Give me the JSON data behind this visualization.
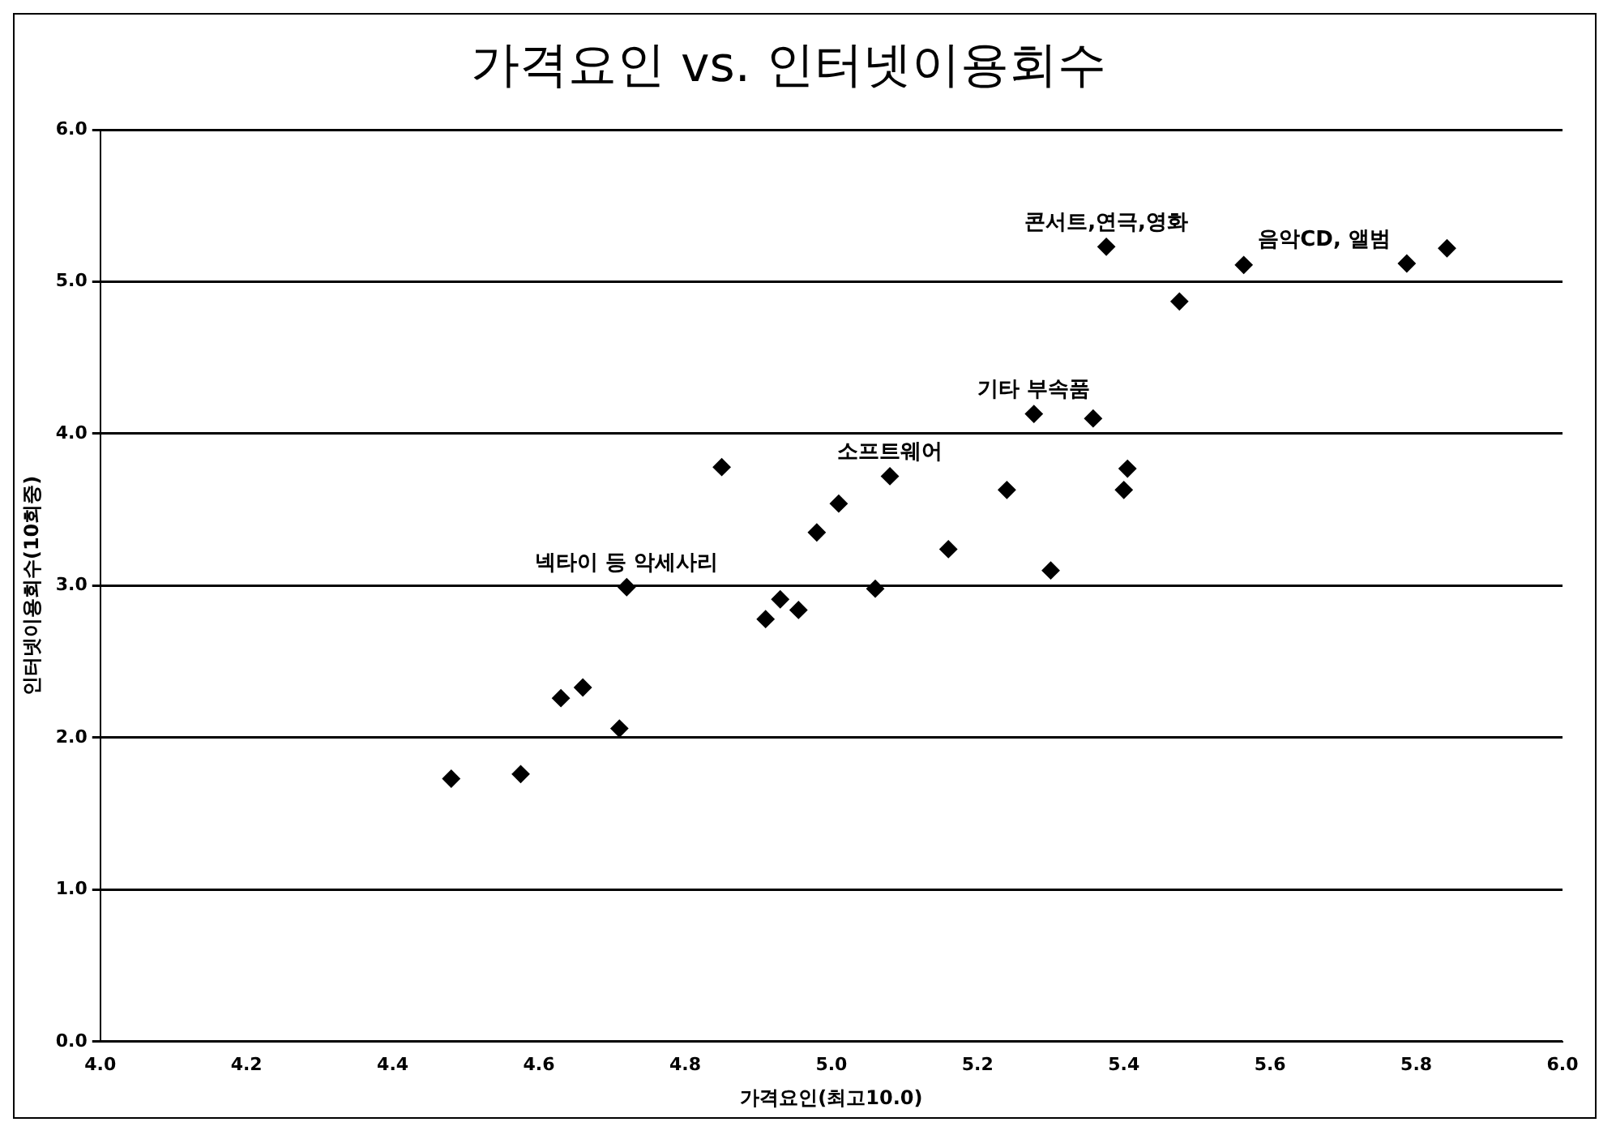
{
  "chart_data": {
    "type": "scatter",
    "title": "가격요인 vs. 인터넷이용회수",
    "xlabel": "가격요인(최고10.0)",
    "ylabel": "인터넷이용회수(10회중)",
    "x": [
      4.48,
      4.575,
      4.71,
      4.63,
      4.66,
      4.72,
      4.85,
      5.01,
      4.93,
      4.91,
      4.955,
      5.06,
      4.98,
      5.08,
      5.16,
      5.24,
      5.3,
      5.4,
      5.405,
      5.277,
      5.358,
      5.376,
      5.564,
      5.787,
      5.842,
      5.476
    ],
    "values": [
      1.73,
      1.76,
      2.06,
      2.26,
      2.33,
      2.99,
      3.78,
      3.54,
      2.91,
      2.78,
      2.84,
      2.98,
      3.35,
      3.72,
      3.24,
      3.63,
      3.1,
      3.63,
      3.77,
      4.13,
      4.1,
      5.23,
      5.11,
      5.12,
      5.22,
      4.87
    ],
    "color": "#000000",
    "marker": "diamond",
    "xlim": [
      4.0,
      6.0
    ],
    "xticks": [
      {
        "value": 4.0,
        "label": "4.0"
      },
      4.2,
      4.4,
      4.6,
      4.8,
      {
        "value": 5.0,
        "label": "5.0"
      },
      5.2,
      5.4,
      5.6,
      5.8,
      {
        "value": 6.0,
        "label": "6.0"
      }
    ],
    "ylim": [
      0.0,
      6.0
    ],
    "yticks": [
      {
        "value": 0,
        "label": "0.0"
      },
      {
        "value": 1,
        "label": "1.0"
      },
      {
        "value": 2,
        "label": "2.0"
      },
      {
        "value": 3,
        "label": "3.0"
      },
      {
        "value": 4,
        "label": "4.0"
      },
      {
        "value": 5,
        "label": "5.0"
      },
      {
        "value": 6,
        "label": "6.0"
      }
    ],
    "grid": "y",
    "legend": false,
    "annotations": [
      {
        "text": "콘서트,연극,영화",
        "x": 5.376,
        "y": 5.23
      },
      {
        "text": "음악CD, 앨범",
        "x": 5.787,
        "y": 5.12
      },
      {
        "text": "기타 부속품",
        "x": 5.277,
        "y": 4.13
      },
      {
        "text": "소프트웨어",
        "x": 5.08,
        "y": 3.72
      },
      {
        "text": "넥타이 등 악세사리",
        "x": 4.72,
        "y": 2.99
      }
    ]
  }
}
